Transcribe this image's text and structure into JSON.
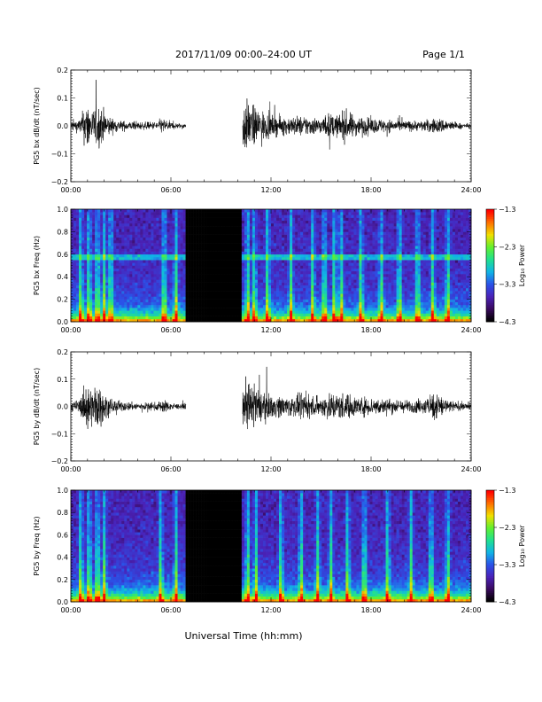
{
  "header": {
    "title": "2017/11/09   00:00–24:00 UT",
    "page": "Page 1/1"
  },
  "footer": {
    "xlabel": "Universal Time (hh:mm)"
  },
  "colors": {
    "trace": "#000000",
    "gap": "#000000",
    "colormap": [
      "#000000",
      "#3a0a5e",
      "#4a22b8",
      "#2a52e8",
      "#10b4e6",
      "#20e090",
      "#60f030",
      "#f0e000",
      "#ff7000",
      "#ff0000"
    ]
  },
  "chart_data": [
    {
      "type": "line",
      "name": "bx-waveform",
      "ylabel": "PG5 bx dB/dt (nT/sec)",
      "ylim": [
        -0.2,
        0.2
      ],
      "yticks": [
        "0.2",
        "0.1",
        "0.0",
        "−0.1",
        "−0.2"
      ],
      "ytick_values": [
        0.2,
        0.1,
        0.0,
        -0.1,
        -0.2
      ],
      "xlim": [
        0,
        24
      ],
      "xticks": [
        "00:00",
        "06:00",
        "12:00",
        "18:00",
        "24:00"
      ],
      "xtick_values": [
        0,
        6,
        12,
        18,
        24
      ],
      "data_gap_hours": [
        6.9,
        10.3
      ],
      "envelope": {
        "x_hours": [
          0,
          0.5,
          1.0,
          1.3,
          1.6,
          2.0,
          2.4,
          3.0,
          4.0,
          5.0,
          5.5,
          6.0,
          6.5,
          6.9,
          10.3,
          10.5,
          11.0,
          11.5,
          12.0,
          13.0,
          14.0,
          15.0,
          15.5,
          16.0,
          16.5,
          17.0,
          18.0,
          19.0,
          20.0,
          21.0,
          22.0,
          22.5,
          23.0,
          23.5,
          24.0
        ],
        "amplitude": [
          0.04,
          0.05,
          0.2,
          0.12,
          0.18,
          0.12,
          0.06,
          0.04,
          0.03,
          0.03,
          0.06,
          0.03,
          0.02,
          0.02,
          0.2,
          0.2,
          0.15,
          0.12,
          0.08,
          0.07,
          0.08,
          0.06,
          0.1,
          0.08,
          0.12,
          0.08,
          0.06,
          0.05,
          0.04,
          0.04,
          0.06,
          0.05,
          0.03,
          0.02,
          0.02
        ]
      }
    },
    {
      "type": "heatmap",
      "name": "bx-spectrogram",
      "ylabel": "PG5 bx Freq (Hz)",
      "ylim": [
        0.0,
        1.0
      ],
      "yticks": [
        "1.0",
        "0.8",
        "0.6",
        "0.4",
        "0.2",
        "0.0"
      ],
      "ytick_values": [
        1.0,
        0.8,
        0.6,
        0.4,
        0.2,
        0.0
      ],
      "xlim": [
        0,
        24
      ],
      "xticks": [
        "00:00",
        "06:00",
        "12:00",
        "18:00",
        "24:00"
      ],
      "xtick_values": [
        0,
        6,
        12,
        18,
        24
      ],
      "data_gap_hours": [
        6.9,
        10.3
      ],
      "colorbar": {
        "label": "Log₁₀ Power",
        "range": [
          -4.3,
          -1.3
        ],
        "ticks": [
          "−1.3",
          "−2.3",
          "−3.3",
          "−4.3"
        ],
        "tick_values": [
          -1.3,
          -2.3,
          -3.3,
          -4.3
        ]
      },
      "persistent_line_hz": 0.58,
      "bursts_hours": [
        0.6,
        1.1,
        1.6,
        2.0,
        2.4,
        5.6,
        6.3,
        10.6,
        11.0,
        11.8,
        13.2,
        14.5,
        15.2,
        15.8,
        16.2,
        17.4,
        18.6,
        19.7,
        20.8,
        21.7,
        22.6
      ]
    },
    {
      "type": "line",
      "name": "by-waveform",
      "ylabel": "PG5 by dB/dt (nT/sec)",
      "ylim": [
        -0.2,
        0.2
      ],
      "yticks": [
        "0.2",
        "0.1",
        "0.0",
        "−0.1",
        "−0.2"
      ],
      "ytick_values": [
        0.2,
        0.1,
        0.0,
        -0.1,
        -0.2
      ],
      "xlim": [
        0,
        24
      ],
      "xticks": [
        "00:00",
        "06:00",
        "12:00",
        "18:00",
        "24:00"
      ],
      "xtick_values": [
        0,
        6,
        12,
        18,
        24
      ],
      "data_gap_hours": [
        6.9,
        10.3
      ],
      "envelope": {
        "x_hours": [
          0,
          0.5,
          1.0,
          1.3,
          1.6,
          2.0,
          2.4,
          3.0,
          4.0,
          5.0,
          5.5,
          6.0,
          6.5,
          6.9,
          10.3,
          10.5,
          11.0,
          11.5,
          12.0,
          13.0,
          14.0,
          15.0,
          15.5,
          16.0,
          16.5,
          17.0,
          18.0,
          19.0,
          20.0,
          21.0,
          22.0,
          22.5,
          23.0,
          23.5,
          24.0
        ],
        "amplitude": [
          0.04,
          0.05,
          0.2,
          0.14,
          0.2,
          0.1,
          0.06,
          0.04,
          0.03,
          0.03,
          0.05,
          0.03,
          0.02,
          0.02,
          0.2,
          0.2,
          0.16,
          0.12,
          0.09,
          0.08,
          0.09,
          0.07,
          0.12,
          0.1,
          0.11,
          0.08,
          0.07,
          0.06,
          0.05,
          0.05,
          0.12,
          0.06,
          0.04,
          0.03,
          0.03
        ]
      }
    },
    {
      "type": "heatmap",
      "name": "by-spectrogram",
      "ylabel": "PG5 by Freq (Hz)",
      "ylim": [
        0.0,
        1.0
      ],
      "yticks": [
        "1.0",
        "0.8",
        "0.6",
        "0.4",
        "0.2",
        "0.0"
      ],
      "ytick_values": [
        1.0,
        0.8,
        0.6,
        0.4,
        0.2,
        0.0
      ],
      "xlim": [
        0,
        24
      ],
      "xticks": [
        "00:00",
        "06:00",
        "12:00",
        "18:00",
        "24:00"
      ],
      "xtick_values": [
        0,
        6,
        12,
        18,
        24
      ],
      "data_gap_hours": [
        6.9,
        10.3
      ],
      "colorbar": {
        "label": "Log₁₀ Power",
        "range": [
          -4.3,
          -1.3
        ],
        "ticks": [
          "−1.3",
          "−2.3",
          "−3.3",
          "−4.3"
        ],
        "tick_values": [
          -1.3,
          -2.3,
          -3.3,
          -4.3
        ]
      },
      "persistent_line_hz": null,
      "bursts_hours": [
        0.6,
        1.1,
        1.6,
        2.0,
        5.4,
        6.3,
        10.6,
        11.1,
        12.6,
        13.8,
        14.8,
        15.6,
        16.6,
        17.6,
        19.0,
        20.4,
        21.6,
        22.6
      ]
    }
  ]
}
